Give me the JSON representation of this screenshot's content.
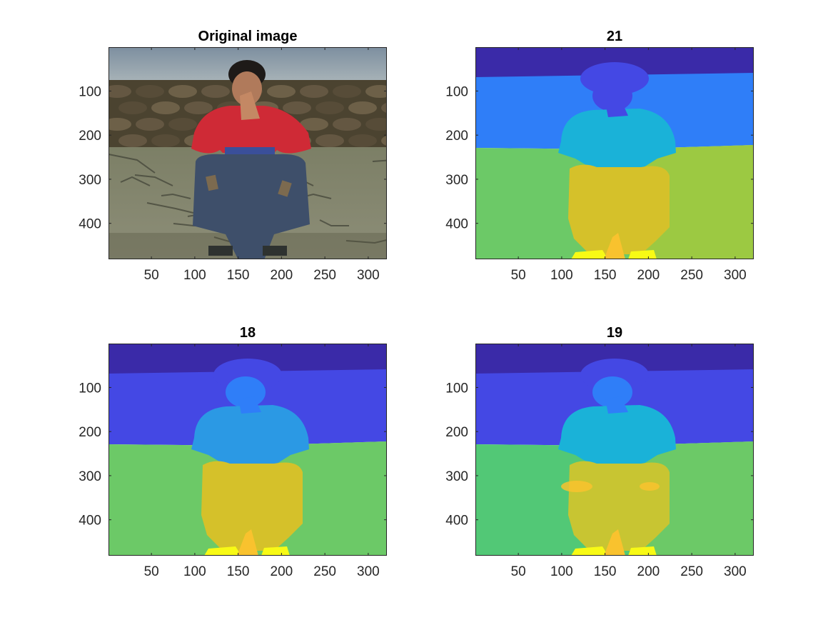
{
  "figure": {
    "colors": {
      "background": "#ffffff",
      "axis": "#262626",
      "parula_dark_blue": "#3a2aa8",
      "parula_blue": "#4448e4",
      "parula_sky": "#2f7ef8",
      "parula_cyan": "#1ab2d8",
      "parula_green": "#6cc967",
      "parula_olive": "#9cc942",
      "parula_mustard": "#d5c12a",
      "parula_orange": "#f9c22e",
      "parula_yellow": "#f8fa15"
    }
  },
  "chart_data": [
    {
      "type": "image",
      "title": "Original image",
      "image_size": [
        321,
        481
      ],
      "xlim": [
        0.5,
        321.5
      ],
      "ylim": [
        0.5,
        481.5
      ],
      "y_reversed": true,
      "xticks": [
        50,
        100,
        150,
        200,
        250,
        300
      ],
      "yticks": [
        100,
        200,
        300,
        400
      ],
      "xticklabels": [
        "50",
        "100",
        "150",
        "200",
        "250",
        "300"
      ],
      "yticklabels": [
        "100",
        "200",
        "300",
        "400"
      ]
    },
    {
      "type": "heatmap",
      "title": "21",
      "colormap": "parula",
      "image_size": [
        321,
        481
      ],
      "xlim": [
        0.5,
        321.5
      ],
      "ylim": [
        0.5,
        481.5
      ],
      "y_reversed": true,
      "xticks": [
        50,
        100,
        150,
        200,
        250,
        300
      ],
      "yticks": [
        100,
        200,
        300,
        400
      ],
      "xticklabels": [
        "50",
        "100",
        "150",
        "200",
        "250",
        "300"
      ],
      "yticklabels": [
        "100",
        "200",
        "300",
        "400"
      ]
    },
    {
      "type": "heatmap",
      "title": "18",
      "colormap": "parula",
      "image_size": [
        321,
        481
      ],
      "xlim": [
        0.5,
        321.5
      ],
      "ylim": [
        0.5,
        481.5
      ],
      "y_reversed": true,
      "xticks": [
        50,
        100,
        150,
        200,
        250,
        300
      ],
      "yticks": [
        100,
        200,
        300,
        400
      ],
      "xticklabels": [
        "50",
        "100",
        "150",
        "200",
        "250",
        "300"
      ],
      "yticklabels": [
        "100",
        "200",
        "300",
        "400"
      ]
    },
    {
      "type": "heatmap",
      "title": "19",
      "colormap": "parula",
      "image_size": [
        321,
        481
      ],
      "xlim": [
        0.5,
        321.5
      ],
      "ylim": [
        0.5,
        481.5
      ],
      "y_reversed": true,
      "xticks": [
        50,
        100,
        150,
        200,
        250,
        300
      ],
      "yticks": [
        100,
        200,
        300,
        400
      ],
      "xticklabels": [
        "50",
        "100",
        "150",
        "200",
        "250",
        "300"
      ],
      "yticklabels": [
        "100",
        "200",
        "300",
        "400"
      ]
    }
  ]
}
